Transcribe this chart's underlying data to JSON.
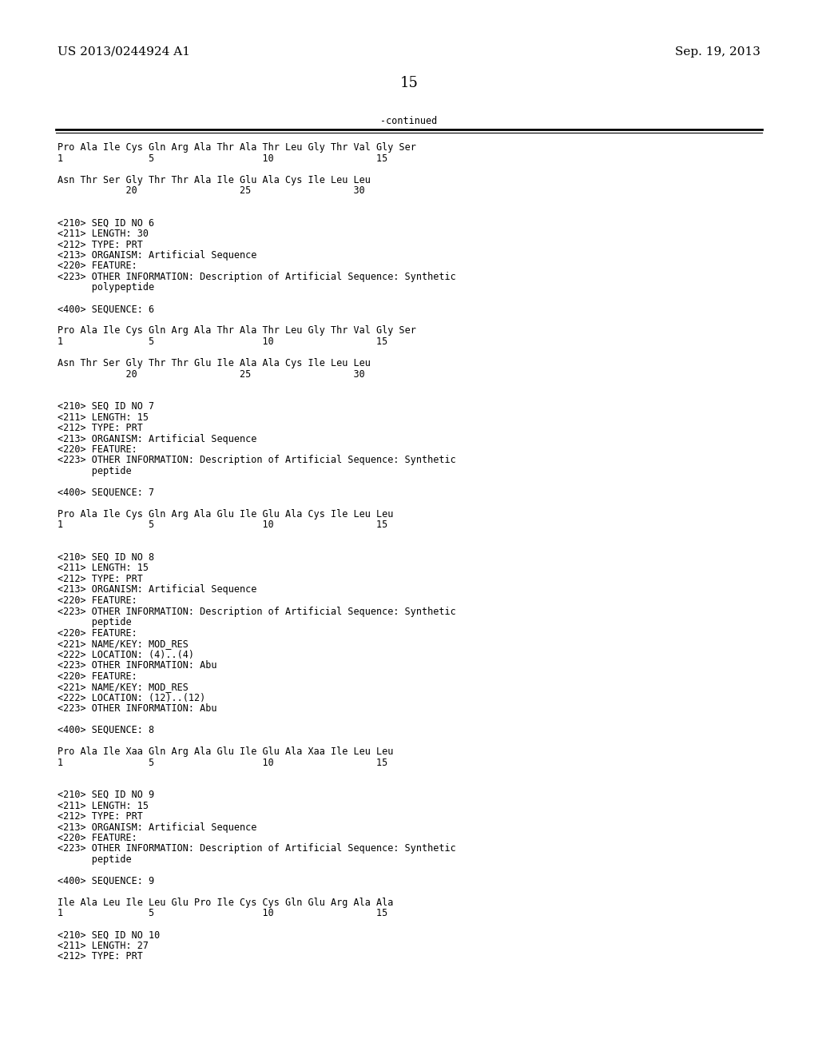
{
  "bg_color": "#ffffff",
  "header_left": "US 2013/0244924 A1",
  "header_right": "Sep. 19, 2013",
  "page_number": "15",
  "continued_label": "-continued",
  "font_size_header": 11,
  "font_size_page": 13,
  "font_size_mono": 8.5,
  "content_lines": [
    "Pro Ala Ile Cys Gln Arg Ala Thr Ala Thr Leu Gly Thr Val Gly Ser",
    "1               5                   10                  15",
    "",
    "Asn Thr Ser Gly Thr Thr Ala Ile Glu Ala Cys Ile Leu Leu",
    "            20                  25                  30",
    "",
    "",
    "<210> SEQ ID NO 6",
    "<211> LENGTH: 30",
    "<212> TYPE: PRT",
    "<213> ORGANISM: Artificial Sequence",
    "<220> FEATURE:",
    "<223> OTHER INFORMATION: Description of Artificial Sequence: Synthetic",
    "      polypeptide",
    "",
    "<400> SEQUENCE: 6",
    "",
    "Pro Ala Ile Cys Gln Arg Ala Thr Ala Thr Leu Gly Thr Val Gly Ser",
    "1               5                   10                  15",
    "",
    "Asn Thr Ser Gly Thr Thr Glu Ile Ala Ala Cys Ile Leu Leu",
    "            20                  25                  30",
    "",
    "",
    "<210> SEQ ID NO 7",
    "<211> LENGTH: 15",
    "<212> TYPE: PRT",
    "<213> ORGANISM: Artificial Sequence",
    "<220> FEATURE:",
    "<223> OTHER INFORMATION: Description of Artificial Sequence: Synthetic",
    "      peptide",
    "",
    "<400> SEQUENCE: 7",
    "",
    "Pro Ala Ile Cys Gln Arg Ala Glu Ile Glu Ala Cys Ile Leu Leu",
    "1               5                   10                  15",
    "",
    "",
    "<210> SEQ ID NO 8",
    "<211> LENGTH: 15",
    "<212> TYPE: PRT",
    "<213> ORGANISM: Artificial Sequence",
    "<220> FEATURE:",
    "<223> OTHER INFORMATION: Description of Artificial Sequence: Synthetic",
    "      peptide",
    "<220> FEATURE:",
    "<221> NAME/KEY: MOD_RES",
    "<222> LOCATION: (4)..(4)",
    "<223> OTHER INFORMATION: Abu",
    "<220> FEATURE:",
    "<221> NAME/KEY: MOD_RES",
    "<222> LOCATION: (12)..(12)",
    "<223> OTHER INFORMATION: Abu",
    "",
    "<400> SEQUENCE: 8",
    "",
    "Pro Ala Ile Xaa Gln Arg Ala Glu Ile Glu Ala Xaa Ile Leu Leu",
    "1               5                   10                  15",
    "",
    "",
    "<210> SEQ ID NO 9",
    "<211> LENGTH: 15",
    "<212> TYPE: PRT",
    "<213> ORGANISM: Artificial Sequence",
    "<220> FEATURE:",
    "<223> OTHER INFORMATION: Description of Artificial Sequence: Synthetic",
    "      peptide",
    "",
    "<400> SEQUENCE: 9",
    "",
    "Ile Ala Leu Ile Leu Glu Pro Ile Cys Cys Gln Glu Arg Ala Ala",
    "1               5                   10                  15",
    "",
    "<210> SEQ ID NO 10",
    "<211> LENGTH: 27",
    "<212> TYPE: PRT"
  ]
}
